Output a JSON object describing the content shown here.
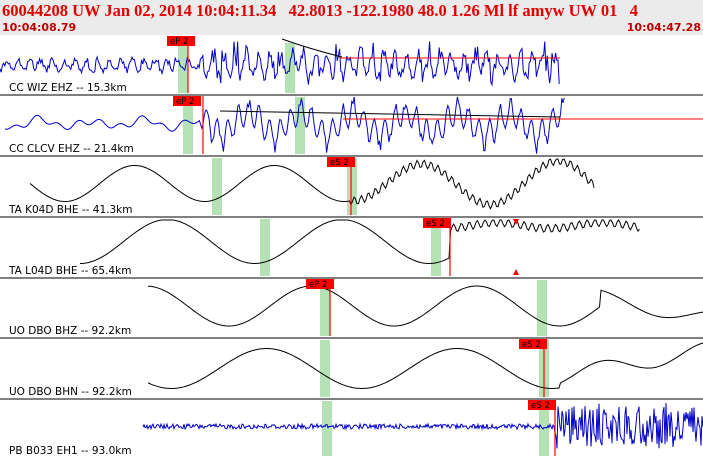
{
  "header": {
    "title": "60044208 UW Jan 02, 2014 10:04:11.34   42.8013 -122.1980 48.0 1.26 Ml lf amyw UW 01   4",
    "start_time": "10:04:08.79",
    "end_time": "10:04:47.28"
  },
  "colors": {
    "trace_blue": "#0000cc",
    "trace_black": "#000000",
    "pick_red": "#ff0000",
    "window_green": "#b5e2b5",
    "header_text": "#e00000"
  },
  "traces": [
    {
      "label": "CC WIZ EHZ -- 15.3km",
      "pick_label": "eP 2",
      "color": "blue"
    },
    {
      "label": "CC CLCV EHZ -- 21.4km",
      "pick_label": "eP 2",
      "color": "blue"
    },
    {
      "label": "TA K04D BHE -- 41.3km",
      "pick_label": "eS 2",
      "color": "black"
    },
    {
      "label": "TA L04D BHE -- 65.4km",
      "pick_label": "eS 2",
      "color": "black"
    },
    {
      "label": "UO DBO BHZ -- 92.2km",
      "pick_label": "eP 2",
      "color": "black"
    },
    {
      "label": "UO DBO BHN -- 92.2km",
      "pick_label": "eS 2",
      "color": "black"
    },
    {
      "label": "PB B033 EH1 -- 93.0km",
      "pick_label": "eS 2",
      "color": "blue"
    }
  ]
}
